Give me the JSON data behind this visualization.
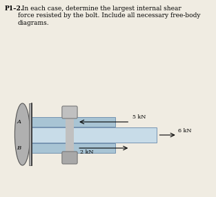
{
  "title_bold": "P1–2.",
  "title_rest": "  In each case, determine the largest internal shear\nforce resisted by the bolt. Include all necessary free-body\ndiagrams.",
  "bg_color": "#f0ece2",
  "wall_color": "#b0b0b0",
  "wall_edge": "#555555",
  "plate_outer_color": "#a8c4d4",
  "plate_outer_edge": "#6688aa",
  "plate_inner_color": "#c8dce8",
  "plate_inner_edge": "#6688aa",
  "bolt_top_color": "#c0c0c0",
  "bolt_bot_color": "#a8a8a8",
  "bolt_edge": "#777777",
  "label_A": "A",
  "label_B": "B",
  "arrow_5kN": "5 kN",
  "arrow_2kN": "2 kN",
  "arrow_6kN": "6 kN",
  "font_title": 6.5,
  "font_label": 6.0,
  "font_arrow": 5.8
}
